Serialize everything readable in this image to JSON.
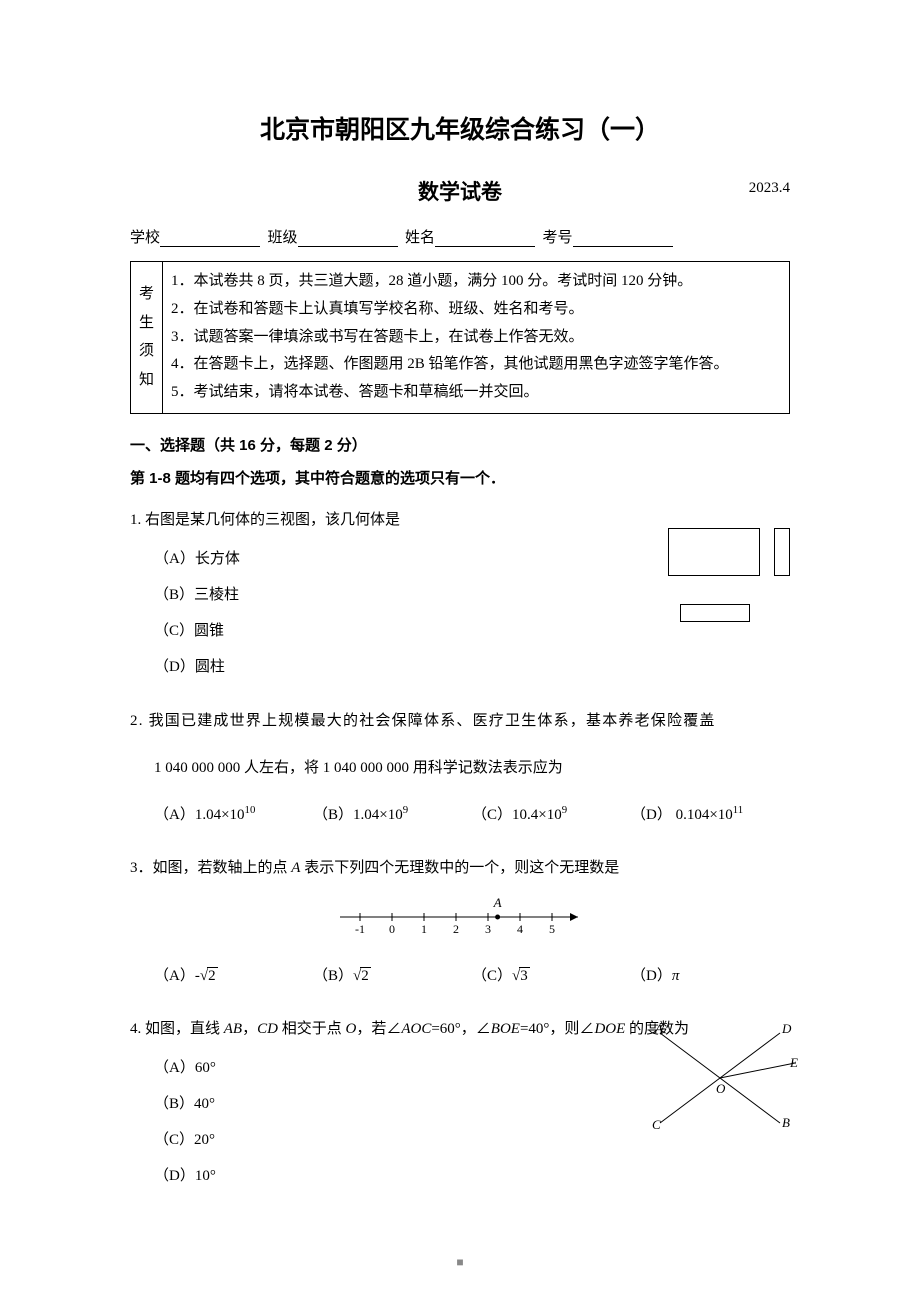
{
  "header": {
    "main_title": "北京市朝阳区九年级综合练习（一）",
    "sub_title": "数学试卷",
    "date": "2023.4"
  },
  "info_line": {
    "school_label": "学校",
    "class_label": "班级",
    "name_label": "姓名",
    "id_label": "考号"
  },
  "notice": {
    "left": "考生须知",
    "items": [
      "1．本试卷共 8 页，共三道大题，28 道小题，满分 100 分。考试时间 120 分钟。",
      "2．在试卷和答题卡上认真填写学校名称、班级、姓名和考号。",
      "3．试题答案一律填涂或书写在答题卡上，在试卷上作答无效。",
      "4．在答题卡上，选择题、作图题用 2B 铅笔作答，其他试题用黑色字迹签字笔作答。",
      "5．考试结束，请将本试卷、答题卡和草稿纸一并交回。"
    ]
  },
  "section1": {
    "title": "一、选择题（共 16 分，每题 2 分）",
    "subtitle": "第 1-8 题均有四个选项，其中符合题意的选项只有一个．"
  },
  "q1": {
    "stem": "1. 右图是某几何体的三视图，该几何体是",
    "opts": [
      "（A）长方体",
      "（B）三棱柱",
      "（C）圆锥",
      "（D）圆柱"
    ]
  },
  "q2": {
    "stem_l1": "2. 我国已建成世界上规模最大的社会保障体系、医疗卫生体系，基本养老保险覆盖",
    "stem_l2": "1 040 000 000 人左右，将 1 040 000 000 用科学记数法表示应为",
    "opts": {
      "A_pre": "（A）1.04×10",
      "A_sup": "10",
      "B_pre": "（B）1.04×10",
      "B_sup": "9",
      "C_pre": "（C）10.4×10",
      "C_sup": "9",
      "D_pre": "（D） 0.104×10",
      "D_sup": "11"
    }
  },
  "q3": {
    "stem_pre": "3．如图，若数轴上的点 ",
    "stem_A": "A",
    "stem_post": " 表示下列四个无理数中的一个，则这个无理数是",
    "numline": {
      "ticks": [
        "-1",
        "0",
        "1",
        "2",
        "3",
        "4",
        "5"
      ],
      "point_label": "A",
      "point_x": 3.3
    },
    "opts": {
      "A_pre": "（A）",
      "A_neg": "-",
      "A_val": "2",
      "B_pre": "（B）",
      "B_val": "2",
      "C_pre": "（C）",
      "C_val": "3",
      "D_pre": "（D）",
      "D_val": "π"
    }
  },
  "q4": {
    "stem_pre": "4. 如图，直线 ",
    "AB": "AB",
    "sep1": "，",
    "CD": "CD",
    "mid1": " 相交于点 ",
    "O": "O",
    "mid2": "，若∠",
    "AOC": "AOC",
    "eq1": "=60°，∠",
    "BOE": "BOE",
    "eq2": "=40°，则∠",
    "DOE": "DOE",
    "tail": " 的度数为",
    "opts": [
      "（A）60°",
      "（B）40°",
      "（C）20°",
      "（D）10°"
    ],
    "labels": {
      "A": "A",
      "B": "B",
      "C": "C",
      "D": "D",
      "E": "E",
      "O": "O"
    }
  },
  "footer": {
    "marker": "■"
  }
}
